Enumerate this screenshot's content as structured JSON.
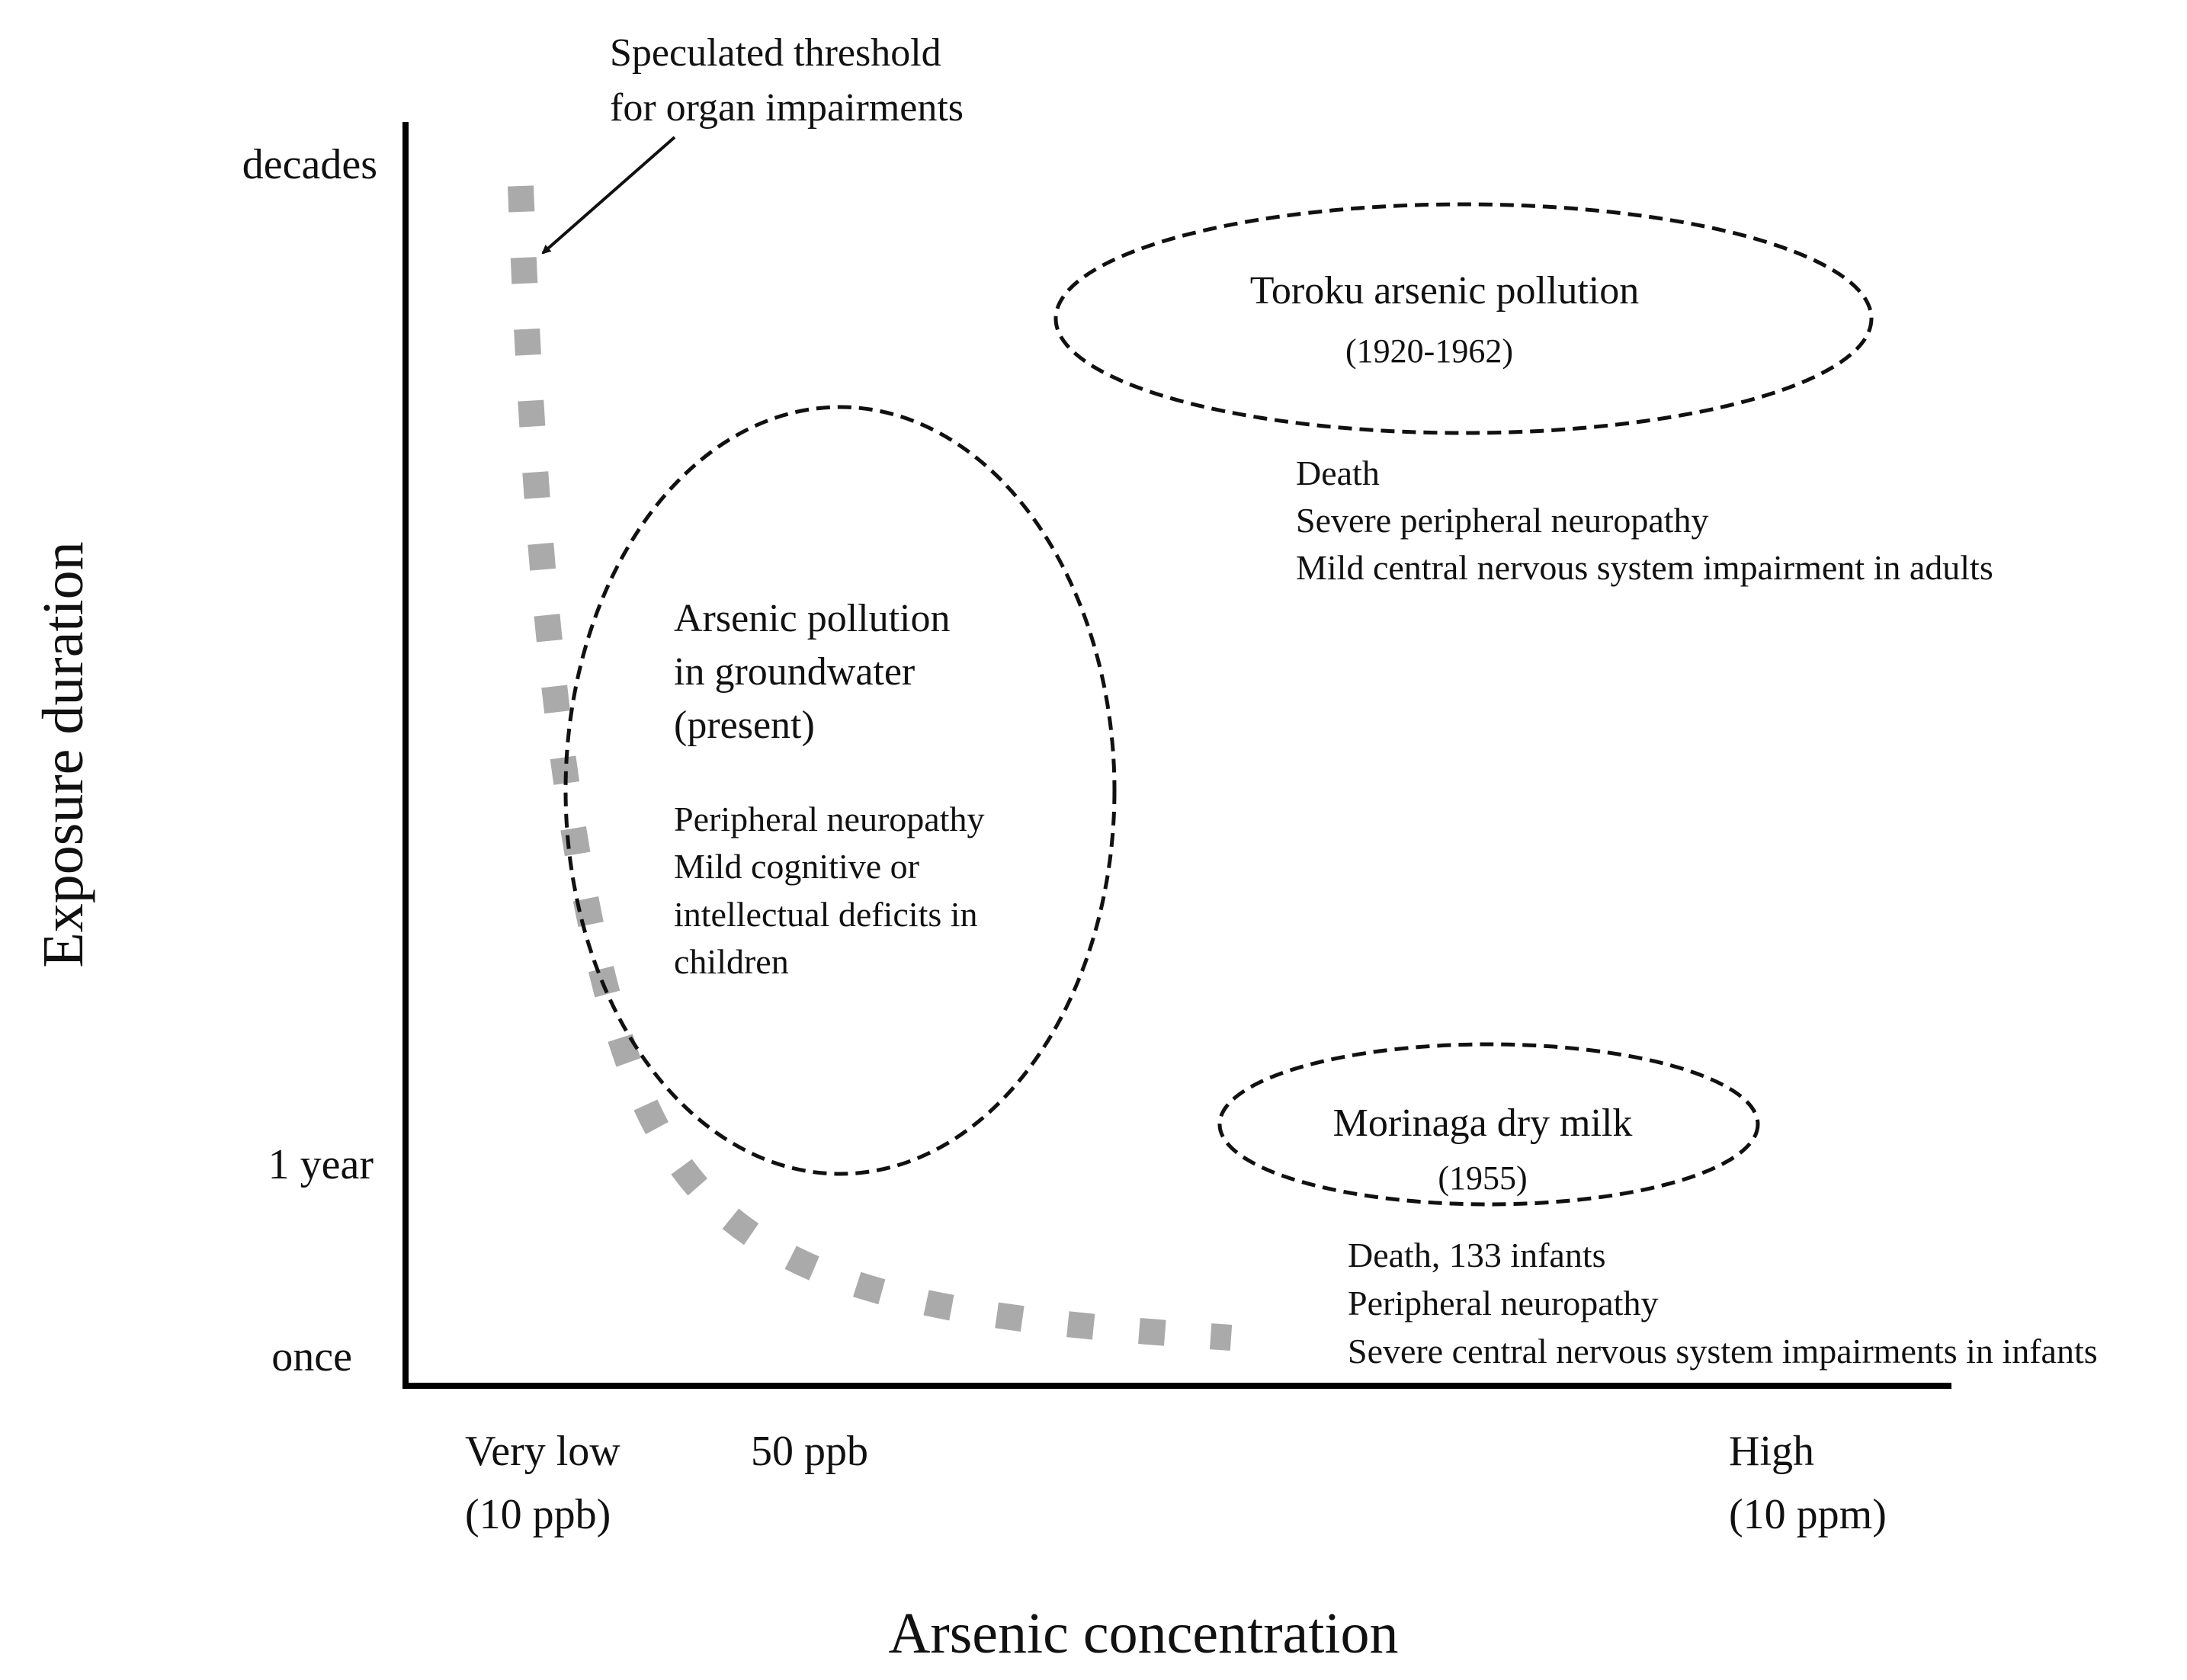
{
  "diagram": {
    "y_axis": {
      "title": "Exposure duration",
      "ticks": [
        "decades",
        "1 year",
        "once"
      ]
    },
    "x_axis": {
      "title": "Arsenic concentration",
      "ticks": [
        {
          "line1": "Very low",
          "line2": "(10 ppb)"
        },
        {
          "line1": "50 ppb",
          "line2": ""
        },
        {
          "line1": "High",
          "line2": "(10 ppm)"
        }
      ]
    },
    "threshold": {
      "label_line1": "Speculated threshold",
      "label_line2": "for organ impairments",
      "color": "#aaaaaa"
    },
    "regions": [
      {
        "id": "groundwater",
        "title_lines": [
          "Arsenic pollution",
          "in groundwater",
          "(present)"
        ],
        "effects": [
          "Peripheral neuropathy",
          "Mild cognitive or",
          "intellectual deficits in",
          "children"
        ]
      },
      {
        "id": "toroku",
        "title_lines": [
          "Toroku arsenic pollution"
        ],
        "years": "(1920-1962)",
        "effects": [
          "Death",
          "Severe peripheral neuropathy",
          "Mild central nervous system impairment  in adults"
        ]
      },
      {
        "id": "morinaga",
        "title_lines": [
          "Morinaga dry milk"
        ],
        "years": "(1955)",
        "effects": [
          "Death, 133 infants",
          "Peripheral neuropathy",
          "Severe central nervous system impairments  in infants"
        ]
      }
    ]
  }
}
